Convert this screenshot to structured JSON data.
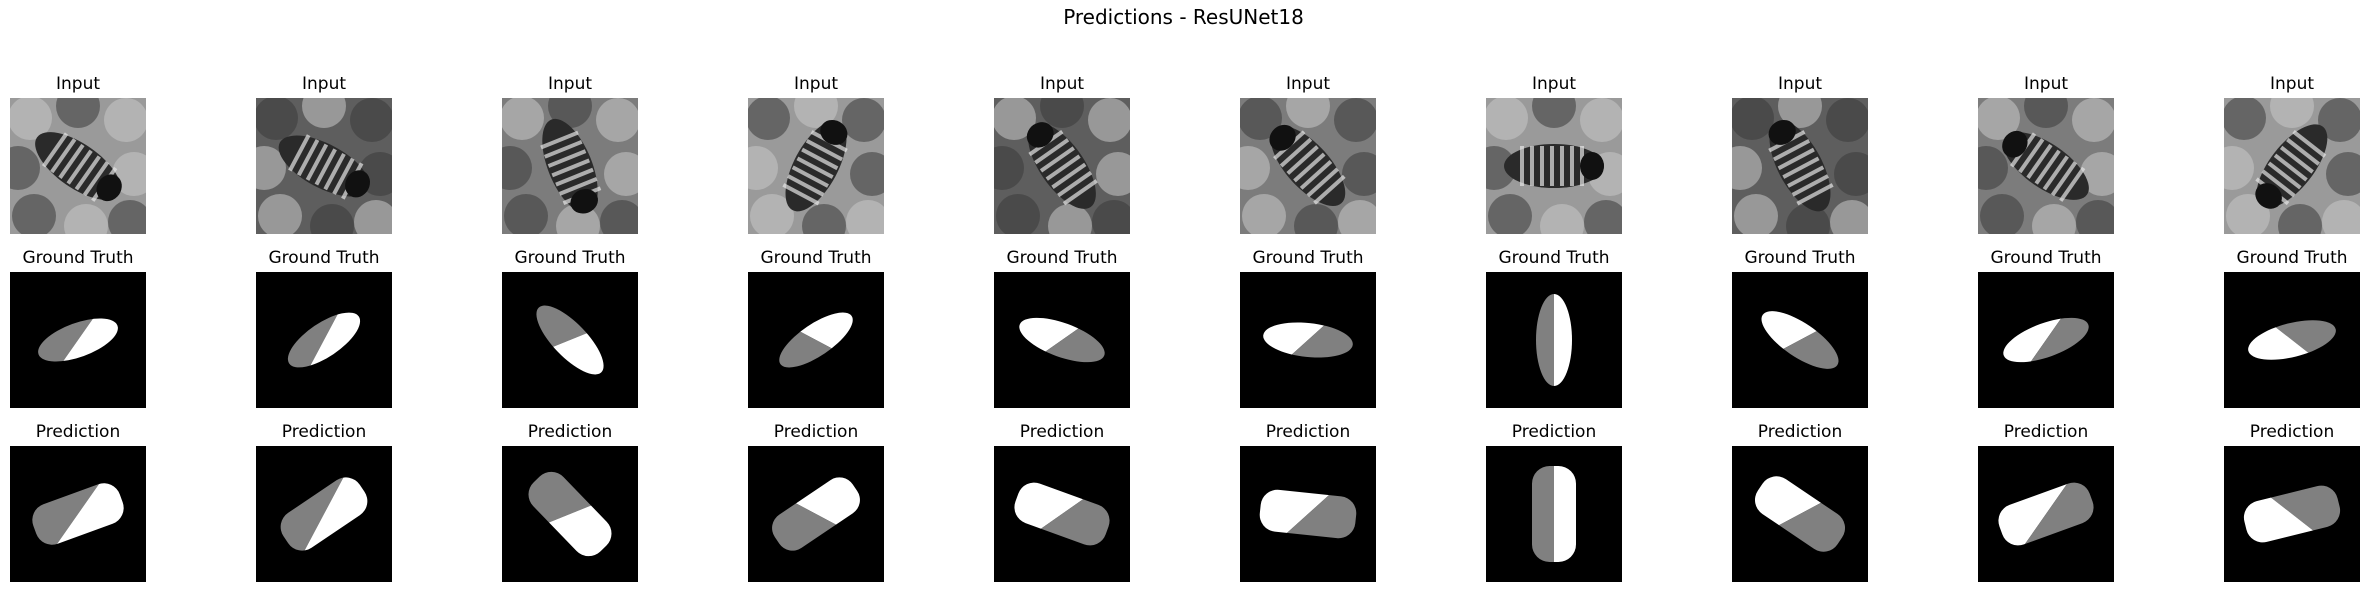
{
  "figure": {
    "title": "Predictions - ResUNet18"
  },
  "row_labels": {
    "input": "Input",
    "ground_truth": "Ground Truth",
    "prediction": "Prediction"
  },
  "colors": {
    "background": "#000000",
    "head": "#ffffff",
    "tail": "#808080"
  },
  "samples": [
    {
      "angle": -55,
      "head_first": true,
      "truth": {
        "rx": 17,
        "ry": 42
      },
      "pred": {
        "rx": 21,
        "ry": 46
      }
    },
    {
      "angle": -62,
      "head_first": true,
      "truth": {
        "rx": 17,
        "ry": 42
      },
      "pred": {
        "rx": 21,
        "ry": 46
      }
    },
    {
      "angle": -22,
      "head_first": true,
      "truth": {
        "rx": 17,
        "ry": 45
      },
      "pred": {
        "rx": 21,
        "ry": 48
      }
    },
    {
      "angle": 28,
      "head_first": false,
      "truth": {
        "rx": 16,
        "ry": 43
      },
      "pred": {
        "rx": 20,
        "ry": 47
      }
    },
    {
      "angle": -35,
      "head_first": false,
      "truth": {
        "rx": 17,
        "ry": 45
      },
      "pred": {
        "rx": 21,
        "ry": 48
      }
    },
    {
      "angle": -42,
      "head_first": false,
      "truth": {
        "rx": 17,
        "ry": 45
      },
      "pred": {
        "rx": 21,
        "ry": 48
      }
    },
    {
      "angle": 90,
      "head_first": false,
      "truth": {
        "rx": 18,
        "ry": 46
      },
      "pred": {
        "rx": 22,
        "ry": 48
      }
    },
    {
      "angle": -28,
      "head_first": false,
      "truth": {
        "rx": 17,
        "ry": 45
      },
      "pred": {
        "rx": 21,
        "ry": 48
      }
    },
    {
      "angle": -55,
      "head_first": false,
      "truth": {
        "rx": 17,
        "ry": 45
      },
      "pred": {
        "rx": 21,
        "ry": 48
      }
    },
    {
      "angle": 38,
      "head_first": true,
      "truth": {
        "rx": 17,
        "ry": 45
      },
      "pred": {
        "rx": 21,
        "ry": 48
      }
    }
  ]
}
